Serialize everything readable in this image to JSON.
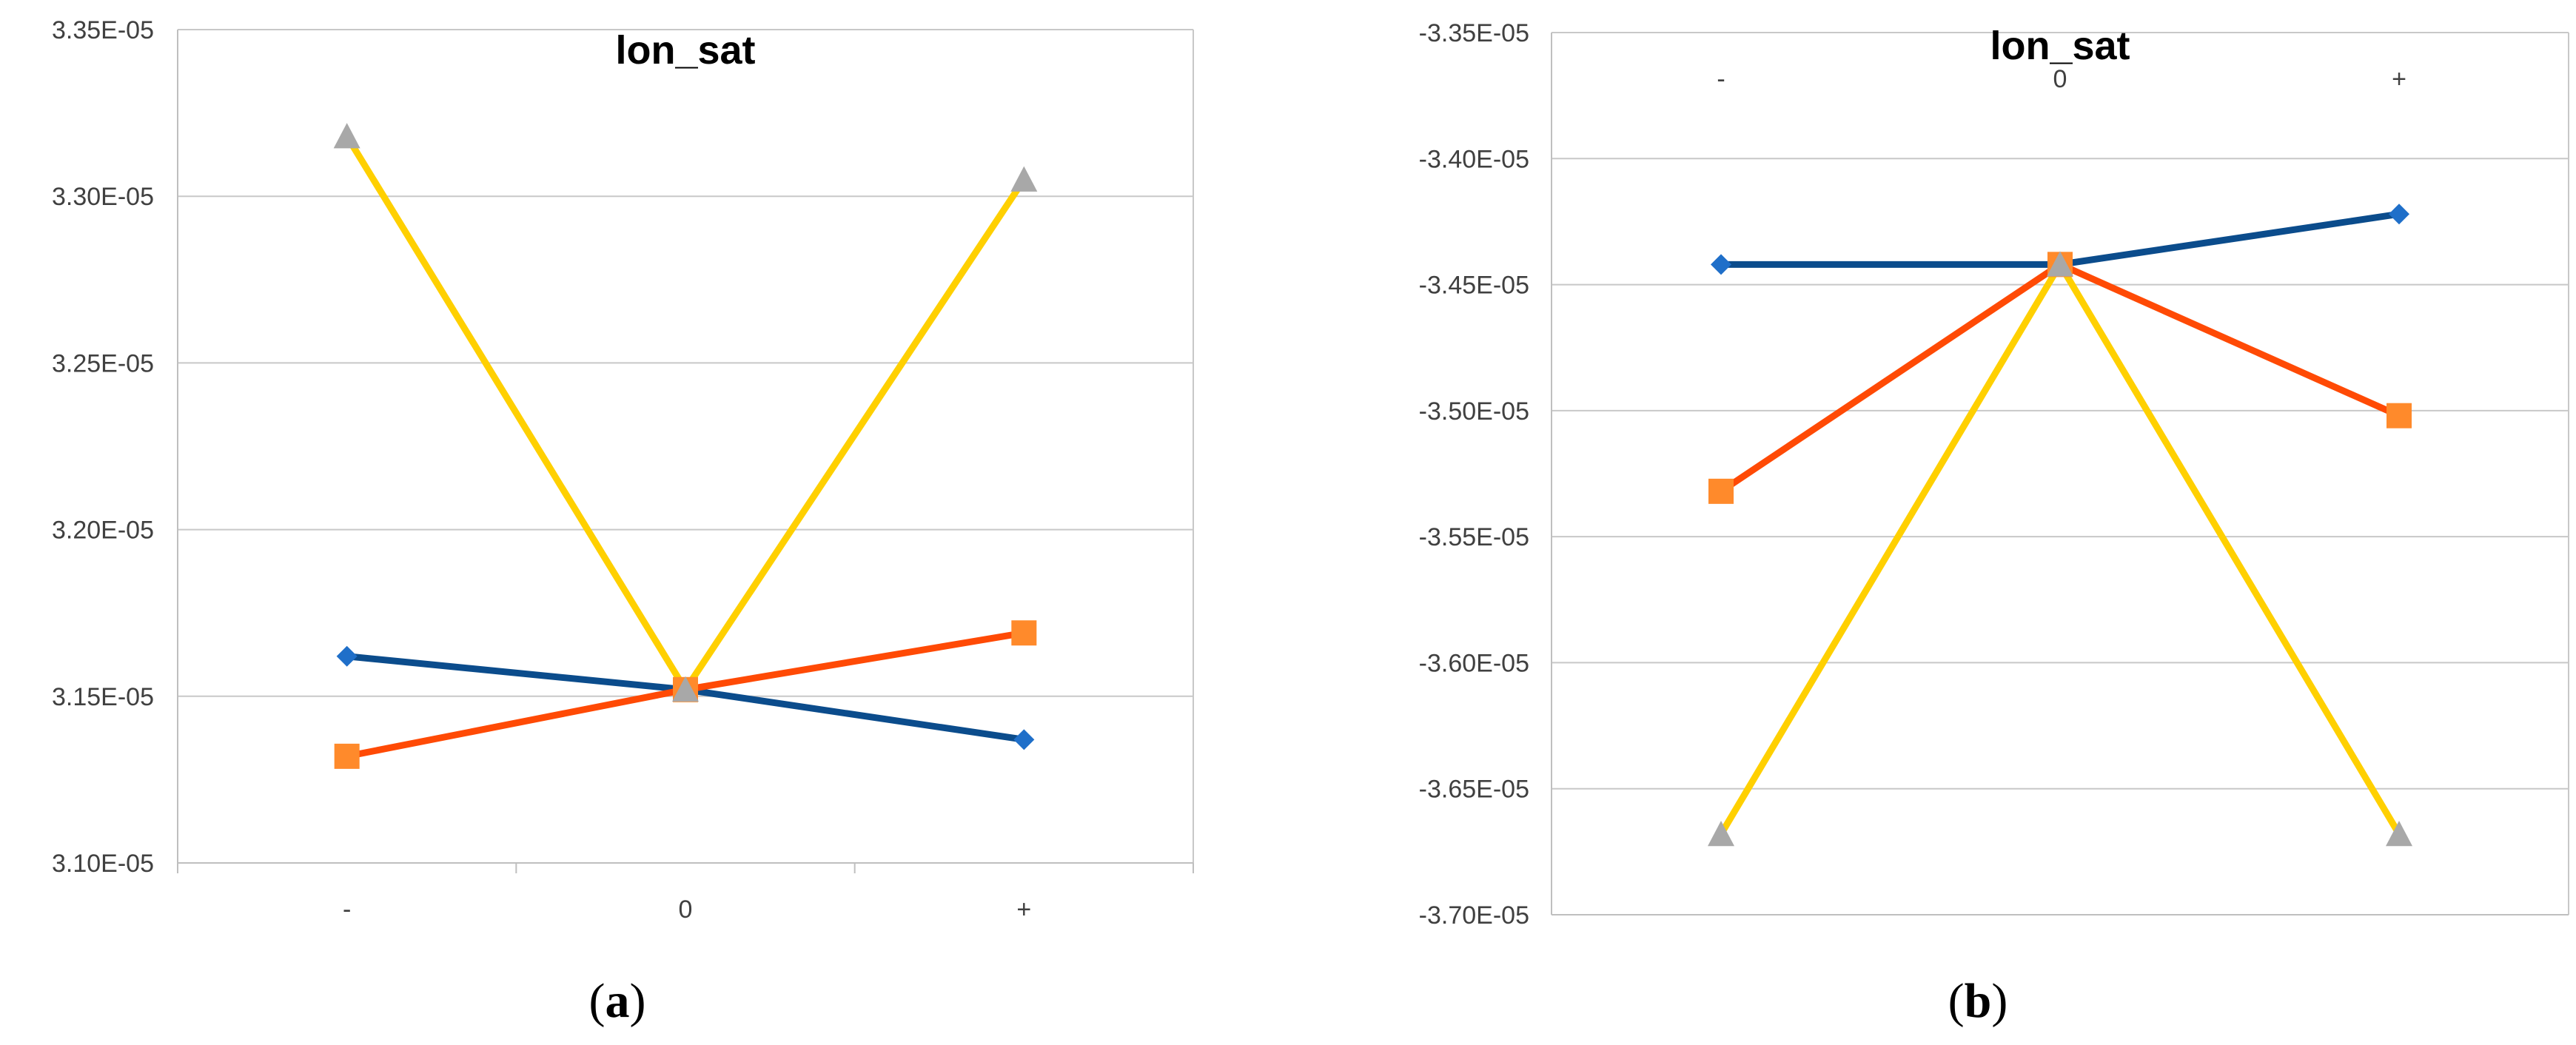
{
  "figure": {
    "panel_labels": [
      {
        "open": "(",
        "letter": "a",
        "close": ")"
      },
      {
        "open": "(",
        "letter": "b",
        "close": ")"
      }
    ]
  },
  "colors": {
    "series_blue_line": "#0B4C8C",
    "series_blue_marker": "#1F6FC9",
    "series_orange_line": "#FF4A05",
    "series_orange_marker": "#FF8A2B",
    "series_yellow_line": "#FFD000",
    "series_yellow_marker": "#A8A8A8",
    "grid": "#C8C8C8",
    "axis": "#BFBFBF"
  },
  "chart_data": [
    {
      "type": "line",
      "title": "lon_sat",
      "categories": [
        "-",
        "0",
        "+"
      ],
      "category_axis_position": "bottom",
      "ylim": [
        3.1e-05,
        3.35e-05
      ],
      "yticks": [
        3.1e-05,
        3.15e-05,
        3.2e-05,
        3.25e-05,
        3.3e-05,
        3.35e-05
      ],
      "ytick_labels": [
        "3.10E-05",
        "3.15E-05",
        "3.20E-05",
        "3.25E-05",
        "3.30E-05",
        "3.35E-05"
      ],
      "grid": true,
      "series": [
        {
          "values": [
            3.162e-05,
            3.152e-05,
            3.137e-05
          ],
          "marker": "diamond",
          "color_key": "blue"
        },
        {
          "values": [
            3.132e-05,
            3.152e-05,
            3.169e-05
          ],
          "marker": "square",
          "color_key": "orange"
        },
        {
          "values": [
            3.318e-05,
            3.152e-05,
            3.305e-05
          ],
          "marker": "triangle",
          "color_key": "yellow"
        }
      ]
    },
    {
      "type": "line",
      "title": "lon_sat",
      "categories": [
        "-",
        "0",
        "+"
      ],
      "category_axis_position": "top",
      "ylim": [
        -3.7e-05,
        -3.35e-05
      ],
      "yticks": [
        -3.7e-05,
        -3.65e-05,
        -3.6e-05,
        -3.55e-05,
        -3.5e-05,
        -3.45e-05,
        -3.4e-05,
        -3.35e-05
      ],
      "ytick_labels": [
        "-3.70E-05",
        "-3.65E-05",
        "-3.60E-05",
        "-3.55E-05",
        "-3.50E-05",
        "-3.45E-05",
        "-3.40E-05",
        "-3.35E-05"
      ],
      "grid": true,
      "series": [
        {
          "values": [
            -3.442e-05,
            -3.442e-05,
            -3.422e-05
          ],
          "marker": "diamond",
          "color_key": "blue"
        },
        {
          "values": [
            -3.532e-05,
            -3.442e-05,
            -3.502e-05
          ],
          "marker": "square",
          "color_key": "orange"
        },
        {
          "values": [
            -3.668e-05,
            -3.442e-05,
            -3.668e-05
          ],
          "marker": "triangle",
          "color_key": "yellow"
        }
      ]
    }
  ]
}
